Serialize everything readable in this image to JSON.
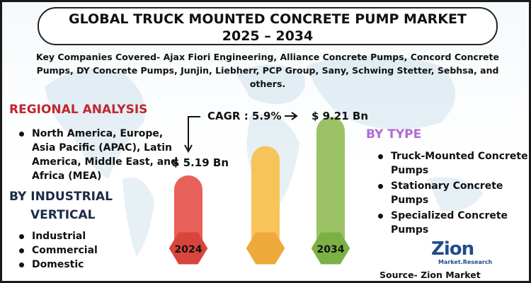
{
  "title": {
    "line1": "GLOBAL TRUCK MOUNTED CONCRETE PUMP MARKET",
    "line2": "2025 – 2034"
  },
  "companies": "Key Companies Covered- Ajax Fiori Engineering, Alliance Concrete Pumps, Concord Concrete Pumps, DY Concrete Pumps, Junjin, Liebherr, PCP Group, Sany, Schwing Stetter, Sebhsa, and others.",
  "regional": {
    "heading": "REGIONAL ANALYSIS",
    "items": [
      "North America, Europe, Asia Pacific (APAC), Latin America, Middle East, and Africa (MEA)"
    ]
  },
  "industrial": {
    "heading_line1": "BY INDUSTRIAL",
    "heading_line2": "VERTICAL",
    "items": [
      "Industrial",
      "Commercial",
      "Domestic"
    ]
  },
  "by_type": {
    "heading": "BY TYPE",
    "items": [
      "Truck-Mounted Concrete Pumps",
      "Stationary Concrete Pumps",
      "Specialized Concrete Pumps"
    ]
  },
  "chart_data": {
    "type": "bar",
    "categories": [
      "2024",
      "",
      "2034"
    ],
    "values": [
      5.19,
      7.2,
      9.21
    ],
    "labels": [
      "$ 5.19 Bn",
      "",
      "$ 9.21 Bn"
    ],
    "cagr": "CAGR : 5.9%",
    "ylim": [
      0,
      10
    ],
    "colors": [
      "#e8605a",
      "#f7c45a",
      "#9bc264"
    ],
    "base_colors": [
      "#d8453c",
      "#efa83a",
      "#7bb045"
    ]
  },
  "logo": {
    "text": "Zion",
    "subtext": "Market.Research"
  },
  "source": "Source- Zion Market Research",
  "colors": {
    "regional_heading": "#c0262f",
    "type_heading": "#b06ad6",
    "industrial_heading": "#1c2b4a",
    "logo_blue": "#1f4d8c"
  }
}
